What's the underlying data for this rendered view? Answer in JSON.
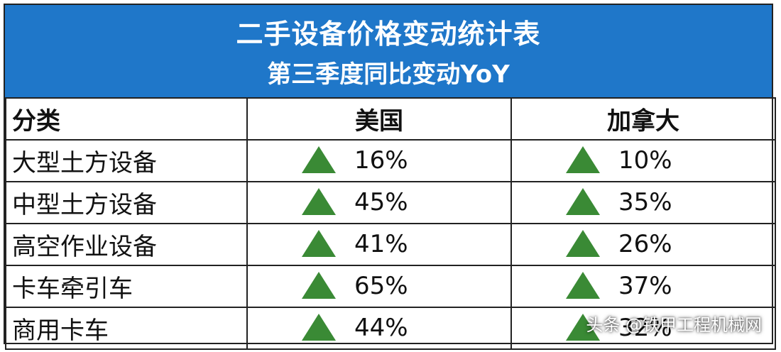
{
  "title": "二手设备价格变动统计表",
  "subtitle": "第三季度同比变动YoY",
  "colors": {
    "header_bg": "#1f77c9",
    "header_text": "#ffffff",
    "up_triangle": "#3a8a35",
    "border": "#222222"
  },
  "chart_data": {
    "type": "table",
    "title": "二手设备价格变动统计表",
    "subtitle": "第三季度同比变动YoY",
    "columns": [
      "分类",
      "美国",
      "加拿大"
    ],
    "rows": [
      {
        "category": "大型土方设备",
        "us": "16%",
        "ca": "10%",
        "us_trend": "up",
        "ca_trend": "up"
      },
      {
        "category": "中型土方设备",
        "us": "45%",
        "ca": "35%",
        "us_trend": "up",
        "ca_trend": "up"
      },
      {
        "category": "高空作业设备",
        "us": "41%",
        "ca": "26%",
        "us_trend": "up",
        "ca_trend": "up"
      },
      {
        "category": "卡车牵引车",
        "us": "65%",
        "ca": "37%",
        "us_trend": "up",
        "ca_trend": "up"
      },
      {
        "category": "商用卡车",
        "us": "44%",
        "ca": "32%",
        "us_trend": "up",
        "ca_trend": "up"
      }
    ]
  },
  "watermark": "头条 @铁甲工程机械网"
}
